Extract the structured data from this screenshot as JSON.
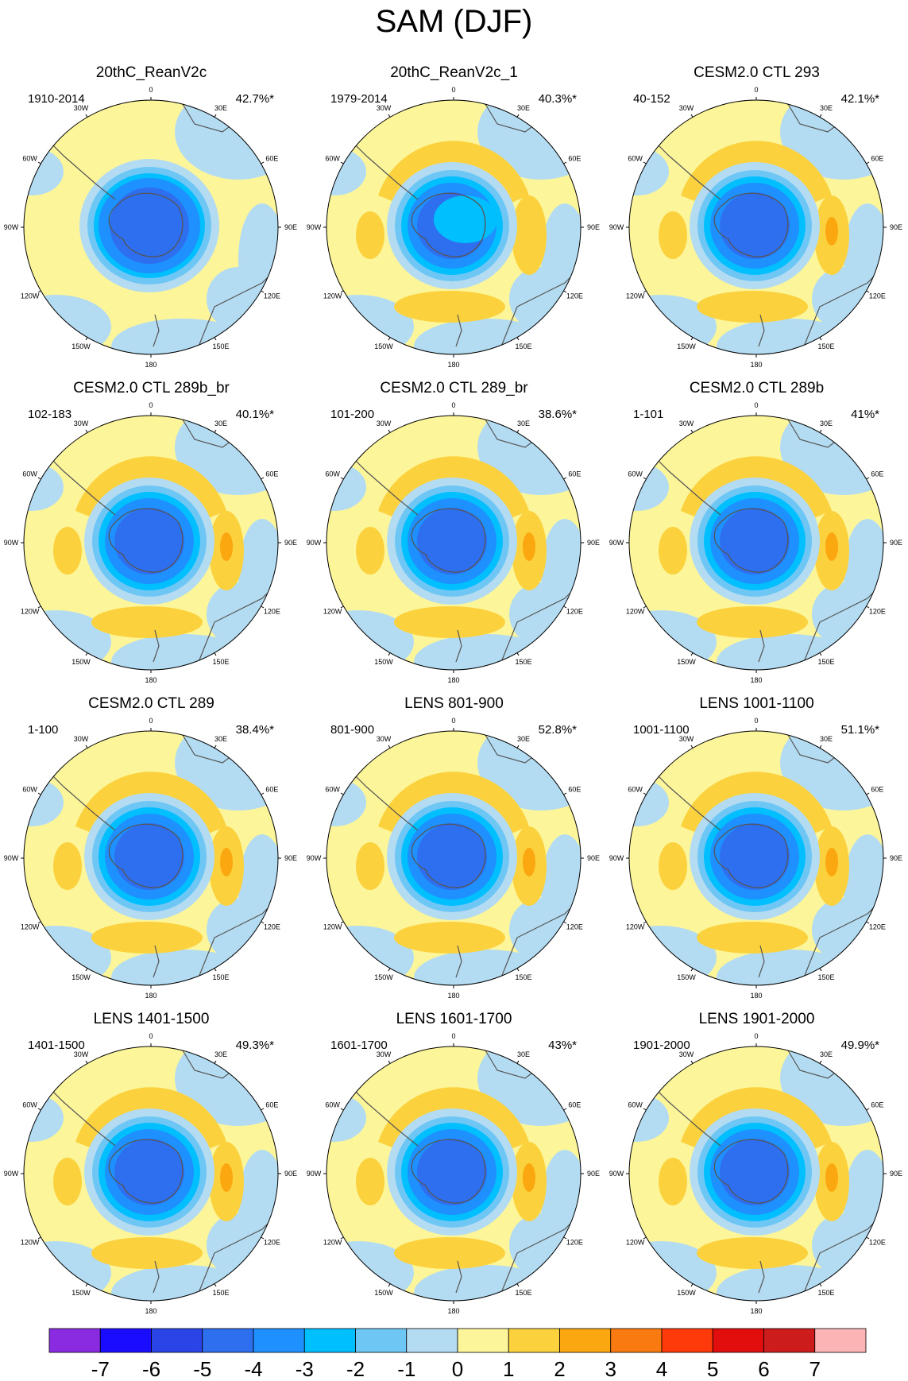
{
  "title": "SAM (DJF)",
  "lon_labels": {
    "0": "0",
    "30E": "30E",
    "60E": "60E",
    "90E": "90E",
    "120E": "120E",
    "150E": "150E",
    "180": "180",
    "150W": "150W",
    "120W": "120W",
    "90W": "90W",
    "60W": "60W",
    "30W": "30W"
  },
  "panels": [
    {
      "title": "20thC_ReanV2c",
      "years": "1910-2014",
      "percent": "42.7%*",
      "pattern": "weak-reanalysis"
    },
    {
      "title": "20thC_ReanV2c_1",
      "years": "1979-2014",
      "percent": "40.3%*",
      "pattern": "reanalysis-recent"
    },
    {
      "title": "CESM2.0 CTL 293",
      "years": "40-152",
      "percent": "42.1%*",
      "pattern": "model-ring"
    },
    {
      "title": "CESM2.0 CTL 289b_br",
      "years": "102-183",
      "percent": "40.1%*",
      "pattern": "model-ring"
    },
    {
      "title": "CESM2.0 CTL 289_br",
      "years": "101-200",
      "percent": "38.6%*",
      "pattern": "model-ring"
    },
    {
      "title": "CESM2.0 CTL 289b",
      "years": "1-101",
      "percent": "41%*",
      "pattern": "model-ring"
    },
    {
      "title": "CESM2.0 CTL 289",
      "years": "1-100",
      "percent": "38.4%*",
      "pattern": "model-ring"
    },
    {
      "title": "LENS 801-900",
      "years": "801-900",
      "percent": "52.8%*",
      "pattern": "lens-ring"
    },
    {
      "title": "LENS 1001-1100",
      "years": "1001-1100",
      "percent": "51.1%*",
      "pattern": "lens-ring"
    },
    {
      "title": "LENS 1401-1500",
      "years": "1401-1500",
      "percent": "49.3%*",
      "pattern": "lens-ring"
    },
    {
      "title": "LENS 1601-1700",
      "years": "1601-1700",
      "percent": "43%*",
      "pattern": "lens-ring"
    },
    {
      "title": "LENS 1901-2000",
      "years": "1901-2000",
      "percent": "49.9%*",
      "pattern": "lens-ring"
    }
  ],
  "colorbar": {
    "ticks": [
      "-7",
      "-6",
      "-5",
      "-4",
      "-3",
      "-2",
      "-1",
      "0",
      "1",
      "2",
      "3",
      "4",
      "5",
      "6",
      "7"
    ],
    "colors": [
      "#8a2be2",
      "#1a0dff",
      "#2a44e8",
      "#2e6ff0",
      "#1e90ff",
      "#00bfff",
      "#6ec6f5",
      "#b3dcf2",
      "#fdf59a",
      "#fbd23d",
      "#fba70f",
      "#f97a10",
      "#fe3a0a",
      "#e20e0e",
      "#cc1c1c",
      "#fdb4b4"
    ]
  },
  "legend_colors": {
    "neg6": "#1a0dff",
    "neg5": "#2a44e8",
    "neg4": "#2e6ff0",
    "neg3": "#1e90ff",
    "neg2": "#00bfff",
    "neg1": "#6ec6f5",
    "neg0": "#b3dcf2",
    "pos0": "#fdf59a",
    "pos1": "#fbd23d",
    "pos2": "#fba70f"
  }
}
